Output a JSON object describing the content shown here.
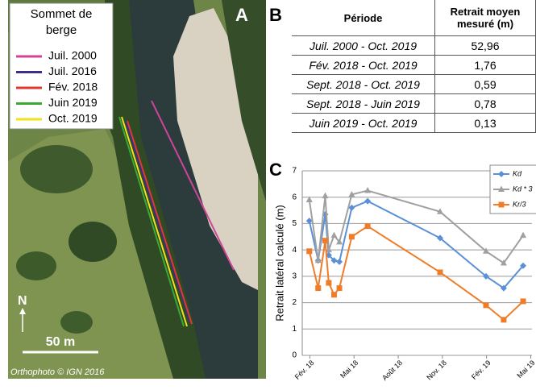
{
  "panel_a": {
    "label": "A",
    "legend_title_lines": [
      "Sommet de",
      "berge"
    ],
    "legend": [
      {
        "name": "Juil. 2000",
        "color": "#d0459a"
      },
      {
        "name": "Juil. 2016",
        "color": "#3b2d8c"
      },
      {
        "name": "Fév. 2018",
        "color": "#e03a2f"
      },
      {
        "name": "Juin 2019",
        "color": "#3aaa35"
      },
      {
        "name": "Oct. 2019",
        "color": "#f2e21c"
      }
    ],
    "north": "N",
    "scale": "50 m",
    "credit": "Orthophoto © IGN 2016"
  },
  "panel_b": {
    "label": "B",
    "table": {
      "header": [
        "Période",
        [
          "Retrait moyen",
          "mesuré (m)"
        ]
      ],
      "rows": [
        [
          "Juil. 2000 - Oct. 2019",
          "52,96"
        ],
        [
          "Fév. 2018 - Oct. 2019",
          "1,76"
        ],
        [
          "Sept. 2018 - Oct. 2019",
          "0,59"
        ],
        [
          "Sept. 2018 - Juin 2019",
          "0,78"
        ],
        [
          "Juin 2019 - Oct. 2019",
          "0,13"
        ]
      ]
    }
  },
  "chart_data": {
    "type": "line",
    "label": "C",
    "y_label": "Retrait latéral calculé (m)",
    "x": [
      2018.08,
      2018.13,
      2018.17,
      2018.19,
      2018.22,
      2018.25,
      2018.32,
      2018.41,
      2018.82,
      2019.08,
      2019.18,
      2019.29
    ],
    "series": [
      {
        "name": "Kd",
        "color": "#5b8fd6",
        "marker": "diamond",
        "values": [
          5.1,
          3.6,
          5.35,
          3.8,
          3.6,
          3.55,
          5.6,
          5.85,
          4.45,
          3.0,
          2.55,
          3.4
        ]
      },
      {
        "name": "Kd * 3",
        "color": "#a0a0a0",
        "marker": "triangle",
        "values": [
          5.9,
          3.6,
          6.05,
          4.0,
          4.55,
          4.3,
          6.1,
          6.25,
          5.45,
          3.95,
          3.5,
          4.55
        ]
      },
      {
        "name": "Kr/3",
        "color": "#f07c28",
        "marker": "square",
        "values": [
          3.95,
          2.55,
          4.35,
          2.75,
          2.3,
          2.55,
          4.5,
          4.9,
          3.15,
          1.9,
          1.35,
          2.05
        ]
      }
    ],
    "xlim": [
      2018.04,
      2019.34
    ],
    "xticks": [
      {
        "value": 2018.083,
        "label": "Fév. 18"
      },
      {
        "value": 2018.333,
        "label": "Mai 18"
      },
      {
        "value": 2018.583,
        "label": "Août 18"
      },
      {
        "value": 2018.833,
        "label": "Nov. 18"
      },
      {
        "value": 2019.083,
        "label": "Fév. 19"
      },
      {
        "value": 2019.333,
        "label": "Mai 19"
      }
    ],
    "ylim": [
      0,
      7
    ],
    "yticks": [
      0,
      1,
      2,
      3,
      4,
      5,
      6,
      7
    ],
    "grid": true
  }
}
